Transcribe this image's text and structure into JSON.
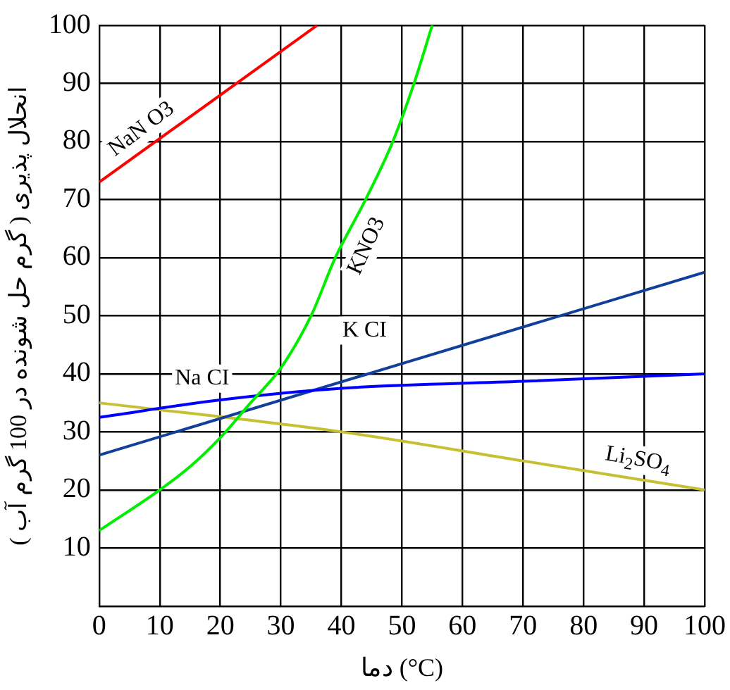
{
  "chart_data": {
    "type": "line",
    "xlabel": "دما (°C)",
    "ylabel": "انحلال پذیری ( گرم حل شونده در 100 گرم آب )",
    "xlim": [
      0,
      100
    ],
    "ylim": [
      0,
      100
    ],
    "xticks": [
      {
        "value": 0,
        "label": "0"
      },
      10,
      20,
      30,
      40,
      50,
      60,
      70,
      80,
      90,
      100
    ],
    "yticks": [
      {
        "value": 0,
        "label": null
      },
      10,
      20,
      30,
      40,
      50,
      60,
      70,
      80,
      90,
      100
    ],
    "grid": true,
    "legend": false,
    "marker": "none",
    "line_style": "solid",
    "series": [
      {
        "name": "NaN O3",
        "color": "#ff0000",
        "x": [
          0,
          36
        ],
        "values": [
          73,
          100
        ]
      },
      {
        "name": "KNO3",
        "color": "#00ee00",
        "x": [
          0,
          10,
          15,
          20,
          25,
          30,
          35,
          39,
          44,
          48.5,
          52,
          55
        ],
        "values": [
          13,
          20,
          24,
          29,
          35,
          41,
          50,
          60,
          70,
          80,
          90,
          100
        ]
      },
      {
        "name": "Na CI",
        "color": "#0000ff",
        "x": [
          0,
          20,
          40,
          70,
          100
        ],
        "values": [
          32.5,
          35.5,
          37.5,
          38.7,
          40
        ]
      },
      {
        "name": "K CI",
        "color": "#123f9a",
        "x": [
          0,
          100
        ],
        "values": [
          26,
          57.5
        ]
      },
      {
        "name": "Li$_{2}$SO$_{4}$",
        "color": "#c8c034",
        "x": [
          0,
          40,
          70,
          100
        ],
        "values": [
          35,
          30,
          25,
          20
        ]
      }
    ]
  }
}
